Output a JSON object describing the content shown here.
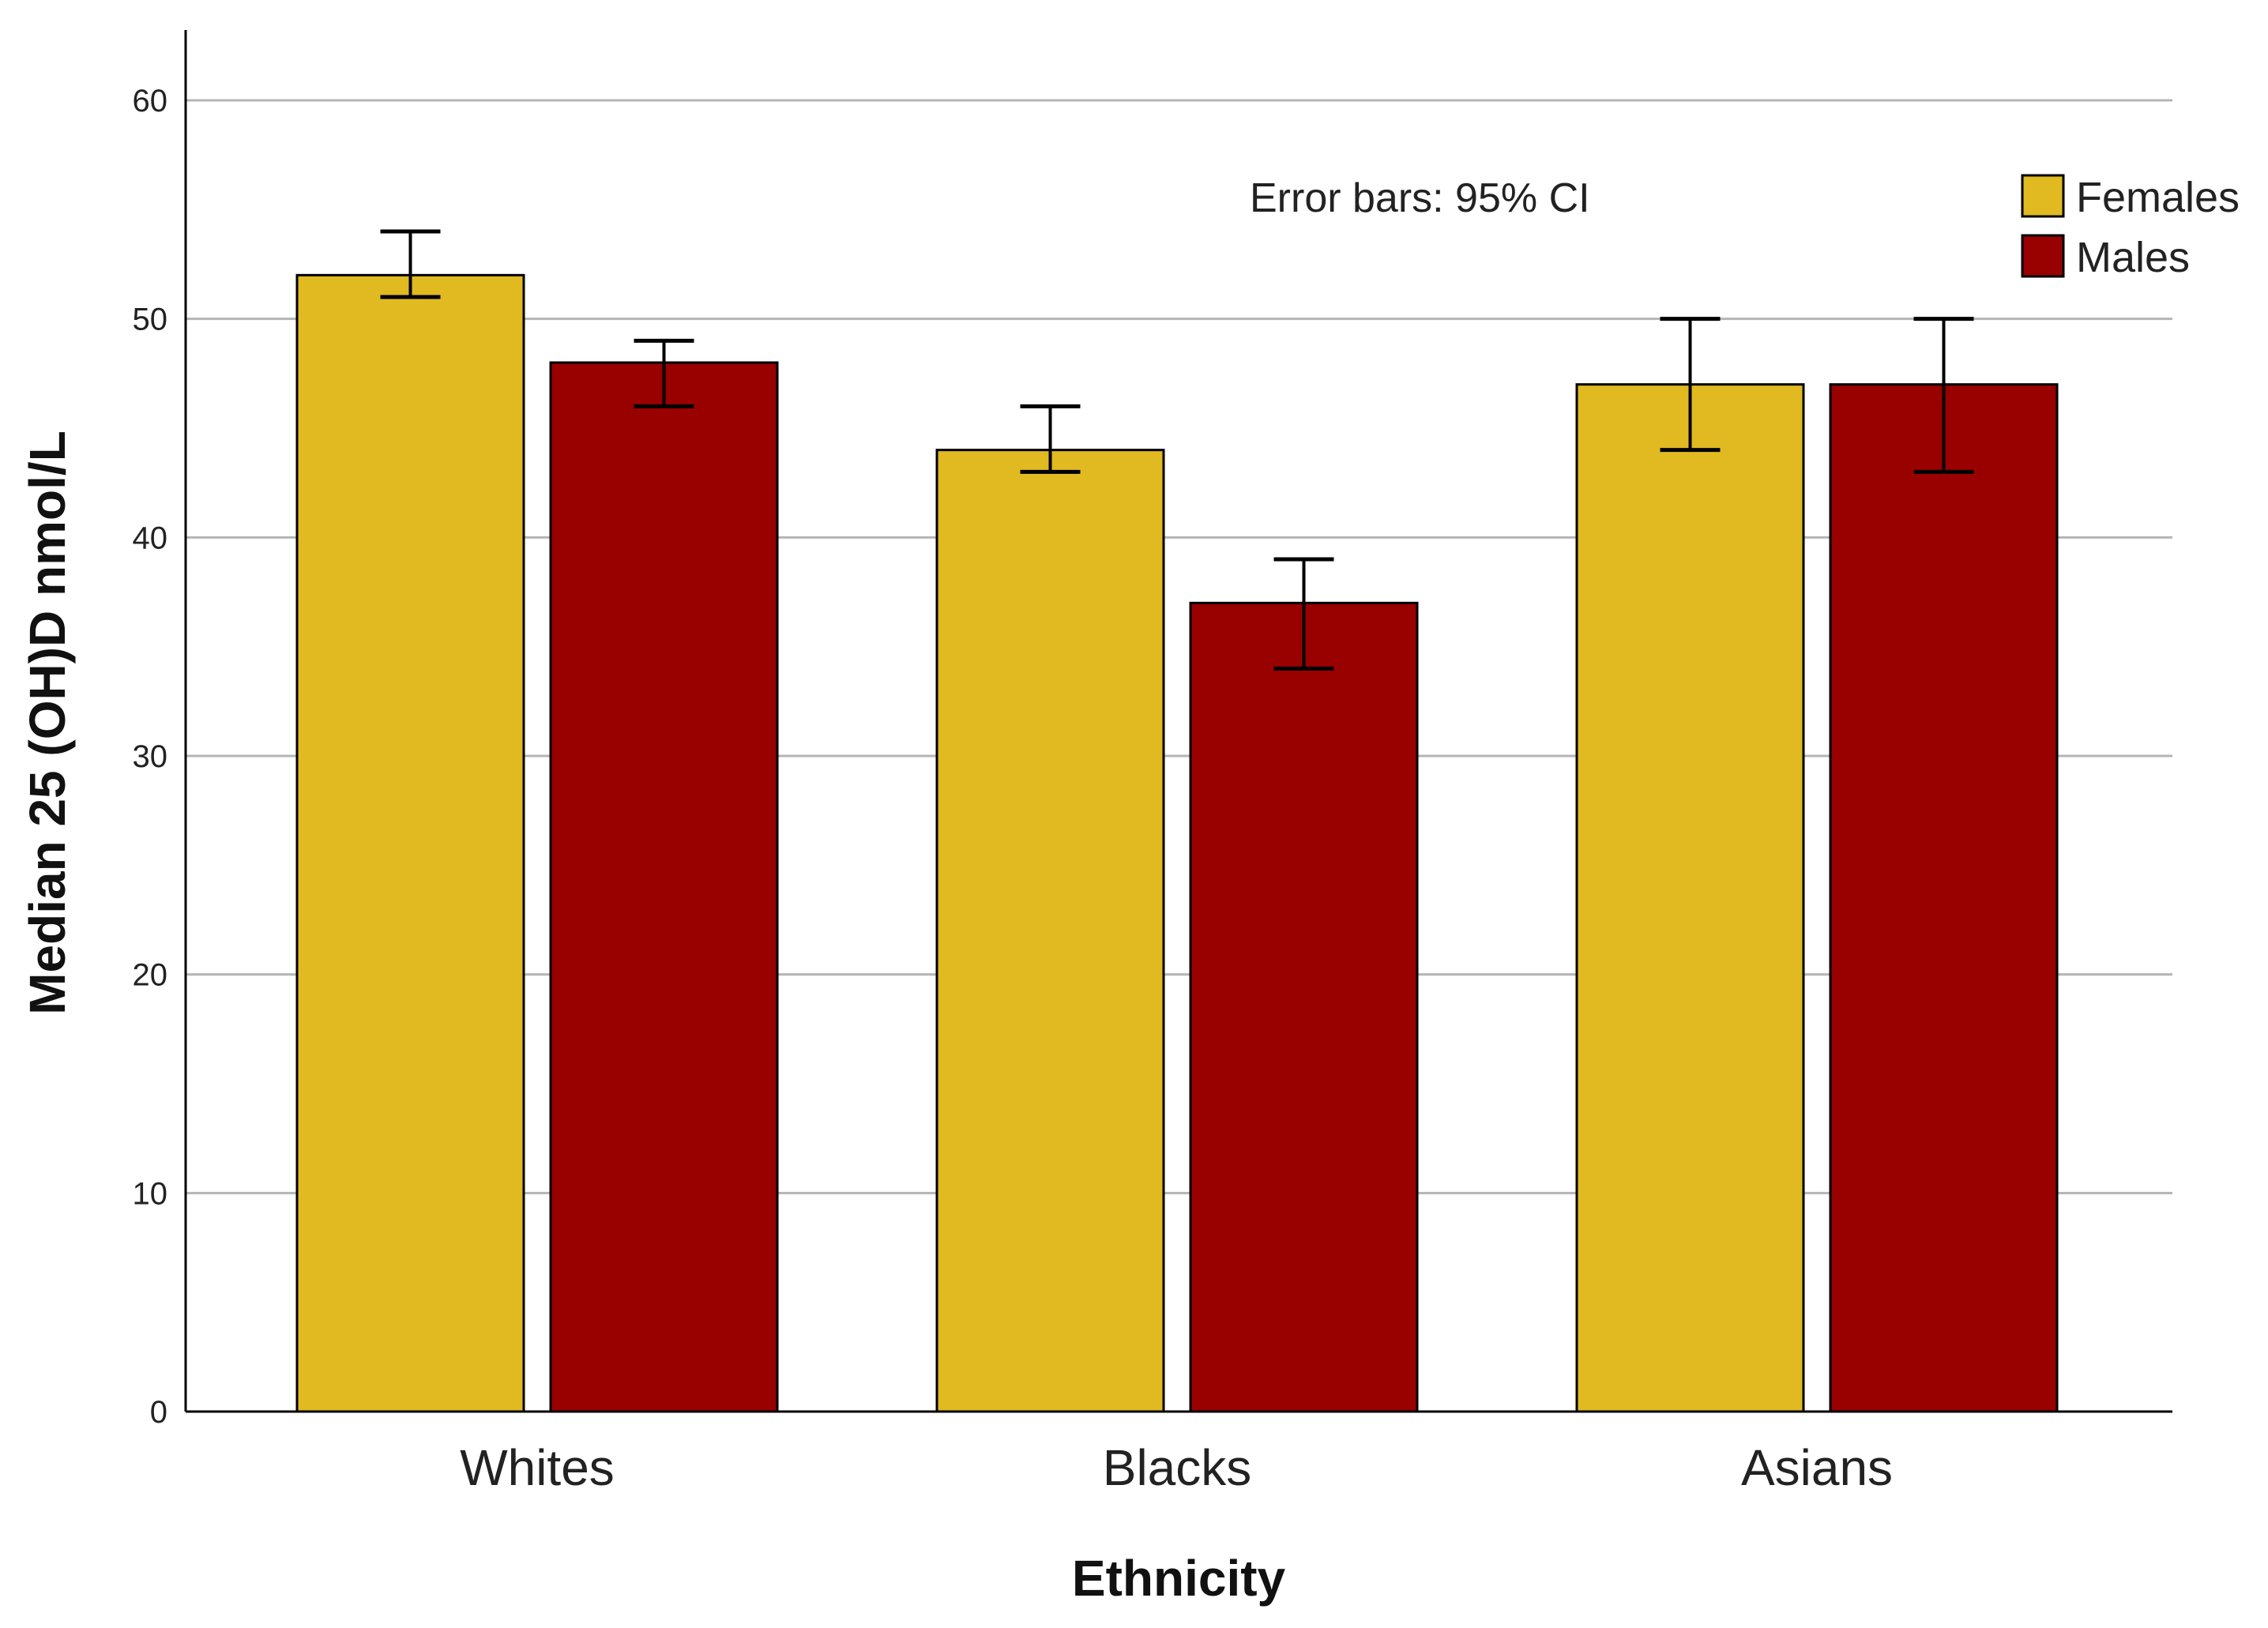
{
  "chart_data": {
    "type": "bar",
    "categories": [
      "Whites",
      "Blacks",
      "Asians"
    ],
    "series": [
      {
        "name": "Females",
        "color": "#E0BA20",
        "values": [
          52,
          44,
          47
        ],
        "ci_low": [
          51,
          43,
          44
        ],
        "ci_high": [
          54,
          46,
          50
        ]
      },
      {
        "name": "Males",
        "color": "#990000",
        "values": [
          48,
          37,
          47
        ],
        "ci_low": [
          46,
          34,
          43
        ],
        "ci_high": [
          49,
          39,
          50
        ]
      }
    ],
    "xlabel": "Ethnicity",
    "ylabel": "Median 25 (OH)D nmol/L",
    "ylim": [
      0,
      63
    ],
    "yticks": [
      0,
      10,
      20,
      30,
      40,
      50,
      60
    ],
    "grid": true,
    "legend_position": "top-right",
    "annotation": "Error bars: 95% CI"
  }
}
